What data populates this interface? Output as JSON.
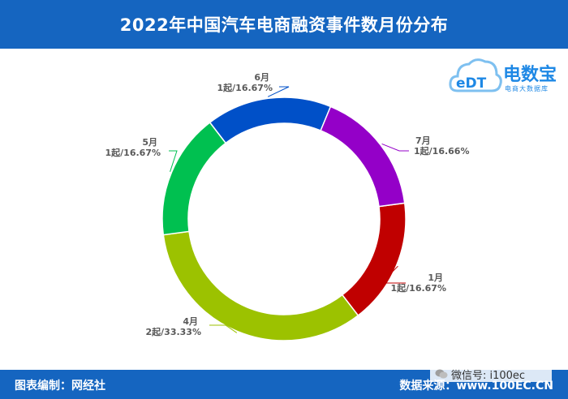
{
  "header": {
    "title": "2022年中国汽车电商融资事件数月份分布"
  },
  "logo": {
    "brand": "电数宝",
    "badge": "eDT",
    "sub": "电商大数据库"
  },
  "footer": {
    "left": "图表编制：网经社",
    "right": "数据来源：www.100EC.CN"
  },
  "watermark": {
    "text": "微信号: i100ec"
  },
  "colors": {
    "header_bg": "#1565c0",
    "jan": "#c00000",
    "apr": "#9cc200",
    "may": "#00c050",
    "jun": "#0050c8",
    "jul": "#9400c8"
  },
  "chart_data": {
    "type": "pie",
    "title": "2022年中国汽车电商融资事件数月份分布",
    "donut": true,
    "slices": [
      {
        "label": "1月",
        "value": 1,
        "value_label": "1起/16.67%",
        "color": "#c00000"
      },
      {
        "label": "4月",
        "value": 2,
        "value_label": "2起/33.33%",
        "color": "#9cc200"
      },
      {
        "label": "5月",
        "value": 1,
        "value_label": "1起/16.67%",
        "color": "#00c050"
      },
      {
        "label": "6月",
        "value": 1,
        "value_label": "1起/16.67%",
        "color": "#0050c8"
      },
      {
        "label": "7月",
        "value": 1,
        "value_label": "1起/16.66%",
        "color": "#9400c8"
      }
    ]
  }
}
